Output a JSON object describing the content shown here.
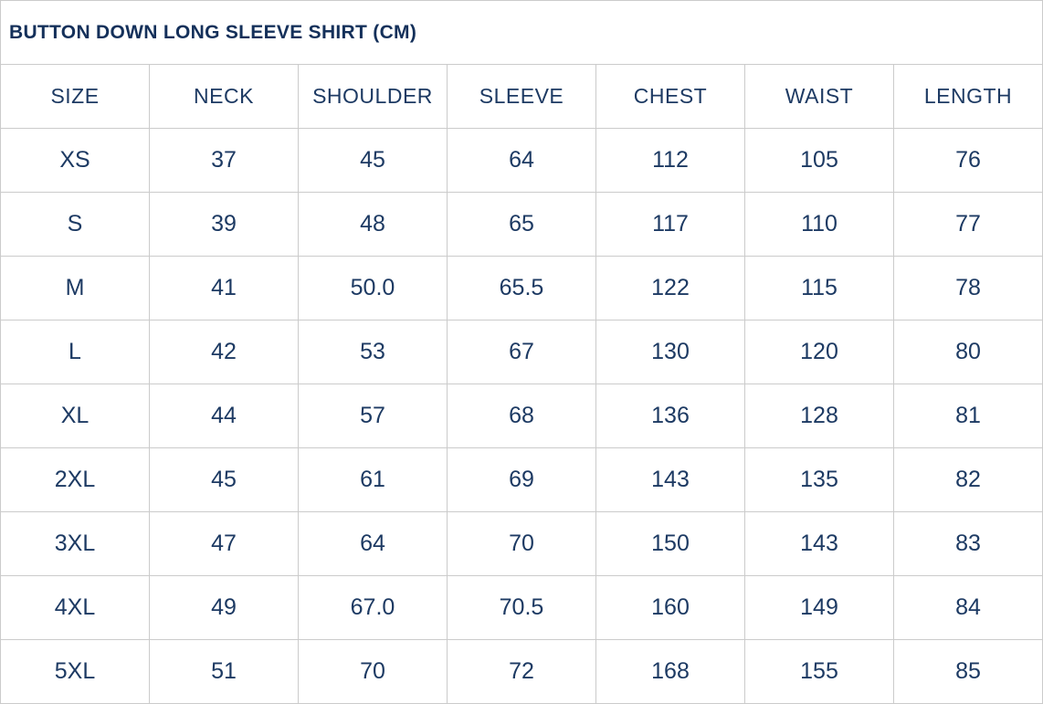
{
  "chart_data": {
    "type": "table",
    "title": "BUTTON DOWN LONG SLEEVE SHIRT (CM)",
    "columns": [
      "SIZE",
      "NECK",
      "SHOULDER",
      "SLEEVE",
      "CHEST",
      "WAIST",
      "LENGTH"
    ],
    "rows": [
      [
        "XS",
        "37",
        "45",
        "64",
        "112",
        "105",
        "76"
      ],
      [
        "S",
        "39",
        "48",
        "65",
        "117",
        "110",
        "77"
      ],
      [
        "M",
        "41",
        "50.0",
        "65.5",
        "122",
        "115",
        "78"
      ],
      [
        "L",
        "42",
        "53",
        "67",
        "130",
        "120",
        "80"
      ],
      [
        "XL",
        "44",
        "57",
        "68",
        "136",
        "128",
        "81"
      ],
      [
        "2XL",
        "45",
        "61",
        "69",
        "143",
        "135",
        "82"
      ],
      [
        "3XL",
        "47",
        "64",
        "70",
        "150",
        "143",
        "83"
      ],
      [
        "4XL",
        "49",
        "67.0",
        "70.5",
        "160",
        "149",
        "84"
      ],
      [
        "5XL",
        "51",
        "70",
        "72",
        "168",
        "155",
        "85"
      ]
    ]
  },
  "colors": {
    "text": "#1d3a63",
    "title_text": "#14305a",
    "border": "#cbcbcb",
    "background": "#ffffff"
  }
}
